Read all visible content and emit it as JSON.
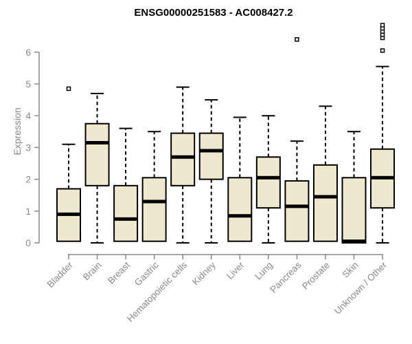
{
  "chart_data": {
    "type": "boxplot",
    "title": "ENSG00000251583 - AC008427.2",
    "ylabel": "Expression",
    "xlabel": "",
    "ylim": [
      0,
      6
    ],
    "yticks": [
      0,
      1,
      2,
      3,
      4,
      5,
      6
    ],
    "grid": false,
    "legend": false,
    "categories": [
      "Bladder",
      "Brain",
      "Breast",
      "Gastric",
      "Hematopoietic cells",
      "Kidney",
      "Liver",
      "Lung",
      "Pancreas",
      "Prostate",
      "Skin",
      "Unknown / Other"
    ],
    "series": [
      {
        "name": "Bladder",
        "whisker_low": 0.05,
        "q1": 0.05,
        "median": 0.9,
        "q3": 1.7,
        "whisker_high": 3.1,
        "outliers": [
          4.85
        ]
      },
      {
        "name": "Brain",
        "whisker_low": 0,
        "q1": 1.8,
        "median": 3.15,
        "q3": 3.75,
        "whisker_high": 4.7,
        "outliers": []
      },
      {
        "name": "Breast",
        "whisker_low": 0.05,
        "q1": 0.05,
        "median": 0.75,
        "q3": 1.8,
        "whisker_high": 3.6,
        "outliers": []
      },
      {
        "name": "Gastric",
        "whisker_low": 0.05,
        "q1": 0.05,
        "median": 1.3,
        "q3": 2.05,
        "whisker_high": 3.5,
        "outliers": []
      },
      {
        "name": "Hematopoietic cells",
        "whisker_low": 0,
        "q1": 1.8,
        "median": 2.7,
        "q3": 3.45,
        "whisker_high": 4.9,
        "outliers": []
      },
      {
        "name": "Kidney",
        "whisker_low": 0,
        "q1": 2.0,
        "median": 2.9,
        "q3": 3.45,
        "whisker_high": 4.5,
        "outliers": []
      },
      {
        "name": "Liver",
        "whisker_low": 0.05,
        "q1": 0.05,
        "median": 0.85,
        "q3": 2.05,
        "whisker_high": 3.95,
        "outliers": []
      },
      {
        "name": "Lung",
        "whisker_low": 0,
        "q1": 1.1,
        "median": 2.05,
        "q3": 2.7,
        "whisker_high": 4.0,
        "outliers": []
      },
      {
        "name": "Pancreas",
        "whisker_low": 0.05,
        "q1": 0.05,
        "median": 1.15,
        "q3": 1.95,
        "whisker_high": 3.2,
        "outliers": [
          6.4
        ]
      },
      {
        "name": "Prostate",
        "whisker_low": 0.05,
        "q1": 0.05,
        "median": 1.45,
        "q3": 2.45,
        "whisker_high": 4.3,
        "outliers": []
      },
      {
        "name": "Skin",
        "whisker_low": 0,
        "q1": 0,
        "median": 0.05,
        "q3": 2.05,
        "whisker_high": 3.5,
        "outliers": []
      },
      {
        "name": "Unknown / Other",
        "whisker_low": 0,
        "q1": 1.1,
        "median": 2.05,
        "q3": 2.95,
        "whisker_high": 5.55,
        "outliers": [
          6.05,
          6.45,
          6.55,
          6.65,
          6.75,
          6.85
        ]
      }
    ],
    "colors": {
      "box_fill": "#EDE8CE",
      "box_border": "#000000",
      "median": "#000000",
      "whisker": "#000000",
      "outlier_stroke": "#000000",
      "outlier_fill": "#ffffff",
      "axis": "#888888",
      "tick_label": "#8a8a8a",
      "title": "#000000",
      "background": "#ffffff"
    }
  }
}
